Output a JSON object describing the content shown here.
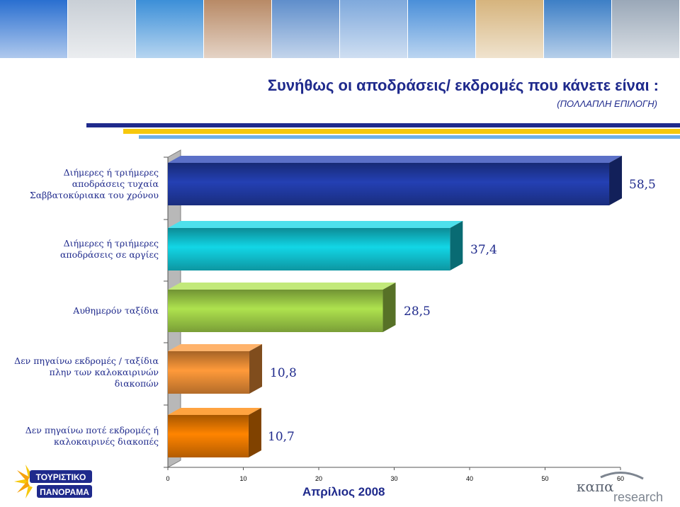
{
  "header": {
    "title": "Συνήθως οι αποδράσεις/ εκδρομές που κάνετε είναι :",
    "subtitle": "(ΠΟΛΛΑΠΛΗ ΕΠΙΛΟΓΗ)"
  },
  "photo_strip": {
    "colors": [
      "#2a6fd0",
      "#c9cfd6",
      "#3c8fd8",
      "#b88a66",
      "#5f8ecb",
      "#7fa9dc",
      "#4a8fd9",
      "#d6b47d",
      "#3d7fc6",
      "#9aa8b8"
    ]
  },
  "chart_data": {
    "type": "bar",
    "orientation": "horizontal",
    "categories": [
      [
        "Διήμερες ή τριήμερες",
        "αποδράσεις τυχαία",
        "Σαββατοκύριακα του χρόνου"
      ],
      [
        "Διήμερες ή τριήμερες",
        "αποδράσεις σε αργίες"
      ],
      [
        "Αυθημερόν ταξίδια"
      ],
      [
        "Δεν πηγαίνω εκδρομές / ταξίδια",
        "πλην των καλοκαιρινών",
        "διακοπών"
      ],
      [
        "Δεν πηγαίνω ποτέ εκδρομές ή",
        "καλοκαιρινές διακοπές"
      ]
    ],
    "values": [
      58.5,
      37.4,
      28.5,
      10.8,
      10.7
    ],
    "value_labels": [
      "58,5",
      "37,4",
      "28,5",
      "10,8",
      "10,7"
    ],
    "bar_colors": [
      "#2440b4",
      "#12d6e6",
      "#aee24e",
      "#ff9a3a",
      "#ff8400"
    ],
    "xlim": [
      0,
      60
    ],
    "xticks": [
      0,
      10,
      20,
      30,
      40,
      50,
      60
    ],
    "grid": false
  },
  "footer": {
    "date": "Απρίλιος 2008",
    "logo_left_text": [
      "ΤΟΥΡΙΣΤΙΚΟ",
      "ΠΑΝΟΡΑΜΑ"
    ],
    "logo_right_text": [
      "καπα",
      "research"
    ]
  }
}
